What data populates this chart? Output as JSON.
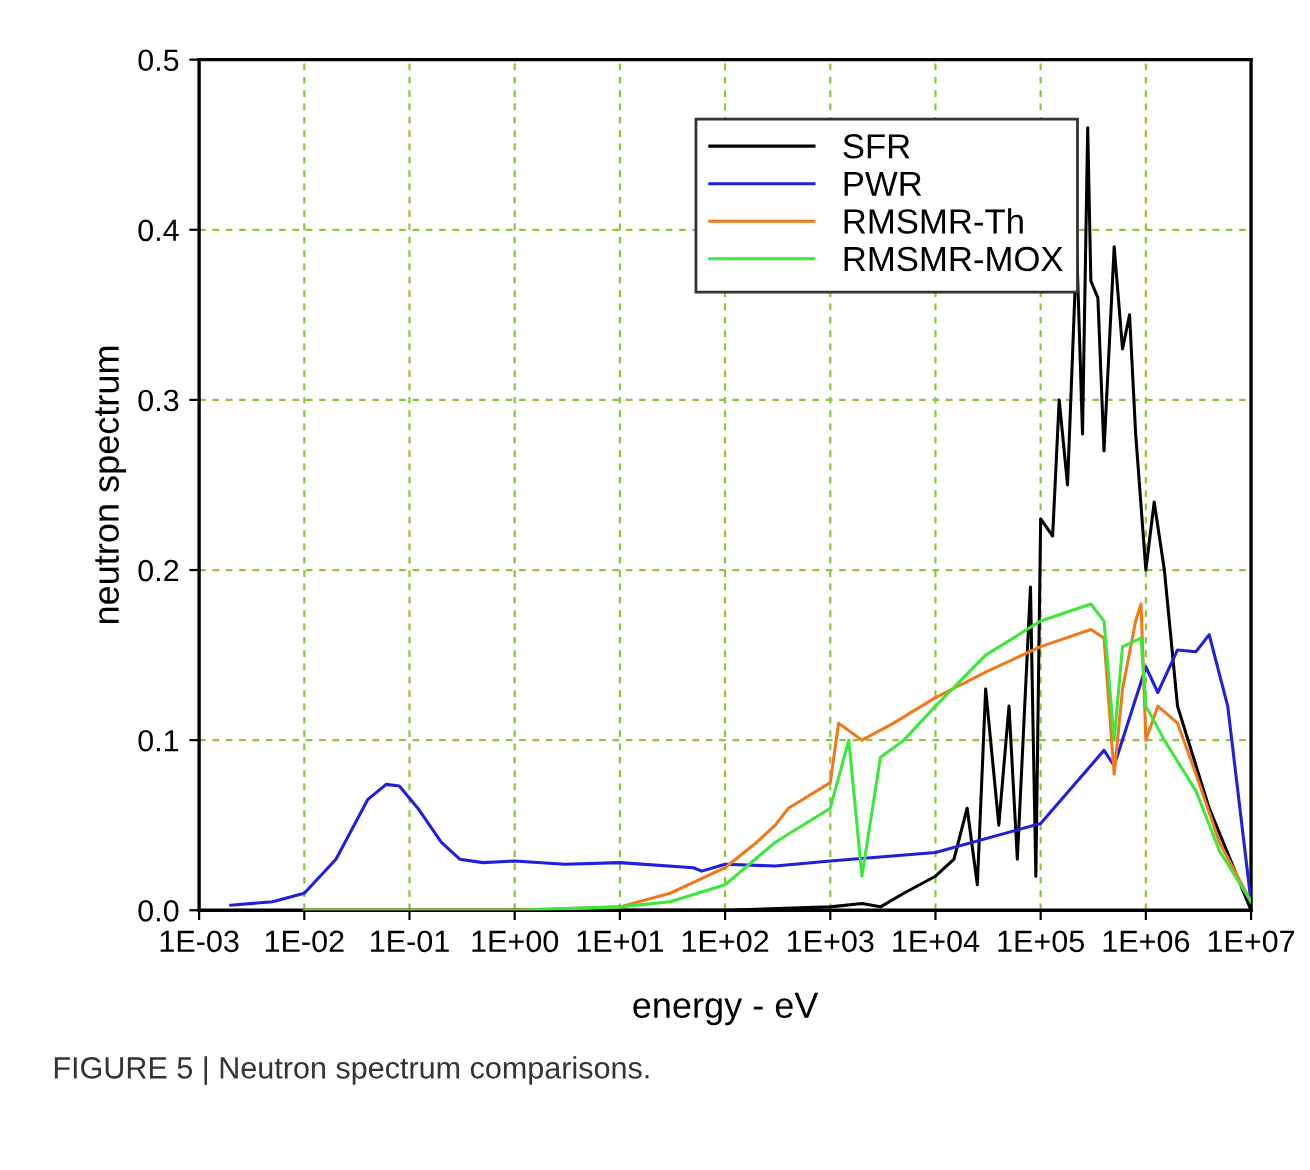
{
  "chart_data": {
    "type": "line",
    "xlabel": "energy - eV",
    "ylabel": "neutron spectrum",
    "log": "x",
    "grid": true,
    "legend": "top right",
    "xlim": [
      0.001,
      10000000
    ],
    "ylim": [
      0,
      0.5
    ],
    "xticks": [
      {
        "value": 0.001,
        "label": "1E-03"
      },
      {
        "value": 0.01,
        "label": "1E-02"
      },
      {
        "value": 0.1,
        "label": "1E-01"
      },
      {
        "value": 1,
        "label": "1E+00"
      },
      {
        "value": 10,
        "label": "1E+01"
      },
      {
        "value": 100,
        "label": "1E+02"
      },
      {
        "value": 1000,
        "label": "1E+03"
      },
      {
        "value": 10000,
        "label": "1E+04"
      },
      {
        "value": 100000,
        "label": "1E+05"
      },
      {
        "value": 1000000,
        "label": "1E+06"
      },
      {
        "value": 10000000,
        "label": "1E+07"
      }
    ],
    "yticks": [
      {
        "value": 0,
        "label": "0.0"
      },
      {
        "value": 0.1,
        "label": "0.1"
      },
      {
        "value": 0.2,
        "label": "0.2"
      },
      {
        "value": 0.3,
        "label": "0.3"
      },
      {
        "value": 0.4,
        "label": "0.4"
      },
      {
        "value": 0.5,
        "label": "0.5"
      }
    ],
    "annotations": [
      "FIGURE 5 | Neutron spectrum comparisons."
    ],
    "series": [
      {
        "name": "SFR",
        "color": "#000000",
        "x": [
          1,
          100,
          1000,
          2000,
          3000,
          5000,
          10000,
          15000,
          20000,
          25000,
          30000,
          40000,
          50000,
          60000,
          80000,
          90000,
          100000,
          130000,
          150000,
          180000,
          220000,
          250000,
          280000,
          300000,
          350000,
          400000,
          500000,
          600000,
          700000,
          800000,
          1000000,
          1200000,
          1500000,
          2000000,
          4000000,
          10000000
        ],
        "values": [
          0,
          0,
          0.002,
          0.004,
          0.002,
          0.01,
          0.02,
          0.03,
          0.06,
          0.015,
          0.13,
          0.05,
          0.12,
          0.03,
          0.19,
          0.02,
          0.23,
          0.22,
          0.3,
          0.25,
          0.39,
          0.28,
          0.46,
          0.37,
          0.36,
          0.27,
          0.39,
          0.33,
          0.35,
          0.28,
          0.2,
          0.24,
          0.2,
          0.12,
          0.06,
          0
        ]
      },
      {
        "name": "PWR",
        "color": "#1f1fdc",
        "x": [
          0.002,
          0.005,
          0.01,
          0.02,
          0.04,
          0.06,
          0.08,
          0.12,
          0.2,
          0.3,
          0.5,
          1,
          3,
          10,
          50,
          60,
          100,
          300,
          1000,
          10000,
          100000,
          400000,
          500000,
          1000000,
          1300000,
          2000000,
          3000000,
          4000000,
          6000000,
          10000000
        ],
        "values": [
          0.003,
          0.005,
          0.01,
          0.03,
          0.065,
          0.074,
          0.073,
          0.06,
          0.04,
          0.03,
          0.028,
          0.029,
          0.027,
          0.028,
          0.025,
          0.023,
          0.027,
          0.026,
          0.029,
          0.034,
          0.051,
          0.094,
          0.085,
          0.143,
          0.128,
          0.153,
          0.152,
          0.162,
          0.12,
          0.005
        ]
      },
      {
        "name": "RMSMR-Th",
        "color": "#f07a1a",
        "x": [
          0.01,
          1,
          10,
          30,
          100,
          200,
          300,
          400,
          1000,
          1200,
          2000,
          4000,
          10000,
          30000,
          100000,
          300000,
          400000,
          500000,
          600000,
          800000,
          900000,
          1000000,
          1300000,
          2000000,
          3000000,
          5000000,
          10000000
        ],
        "values": [
          0,
          0,
          0.002,
          0.01,
          0.025,
          0.04,
          0.05,
          0.06,
          0.075,
          0.11,
          0.1,
          0.11,
          0.125,
          0.14,
          0.155,
          0.165,
          0.16,
          0.08,
          0.13,
          0.17,
          0.18,
          0.1,
          0.12,
          0.11,
          0.08,
          0.04,
          0.005
        ]
      },
      {
        "name": "RMSMR-MOX",
        "color": "#3ce83c",
        "x": [
          0.01,
          1,
          10,
          30,
          100,
          300,
          1000,
          1500,
          2000,
          3000,
          5000,
          10000,
          30000,
          100000,
          300000,
          400000,
          500000,
          600000,
          900000,
          1000000,
          1500000,
          3000000,
          5000000,
          10000000
        ],
        "values": [
          0,
          0,
          0.002,
          0.005,
          0.015,
          0.04,
          0.06,
          0.1,
          0.02,
          0.09,
          0.1,
          0.12,
          0.15,
          0.17,
          0.18,
          0.17,
          0.1,
          0.155,
          0.16,
          0.12,
          0.1,
          0.07,
          0.035,
          0.005
        ]
      }
    ]
  }
}
